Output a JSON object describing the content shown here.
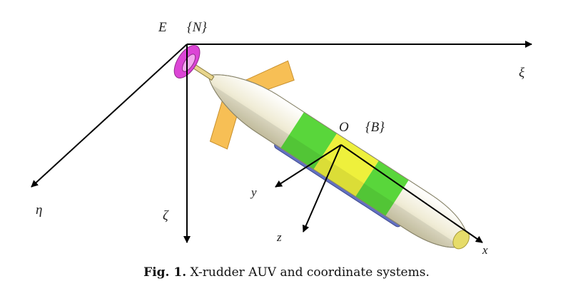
{
  "figure": {
    "earth_frame": {
      "origin_label": "E",
      "frame_label": "{N}",
      "axis_1": "ξ",
      "axis_2": "η",
      "axis_3": "ζ"
    },
    "body_frame": {
      "origin_label": "O",
      "frame_label": "{B}",
      "axis_x": "x",
      "axis_y": "y",
      "axis_z": "z"
    }
  },
  "caption": {
    "number": "Fig. 1.",
    "text": "X-rudder AUV and coordinate systems."
  },
  "colors": {
    "body": "#f2efdc",
    "green": "#59d63b",
    "yellow": "#eef03c",
    "keel": "#6270c2",
    "fin": "#f7bf55",
    "propeller": "#dc45d6",
    "nose": "#e6dc6a"
  }
}
